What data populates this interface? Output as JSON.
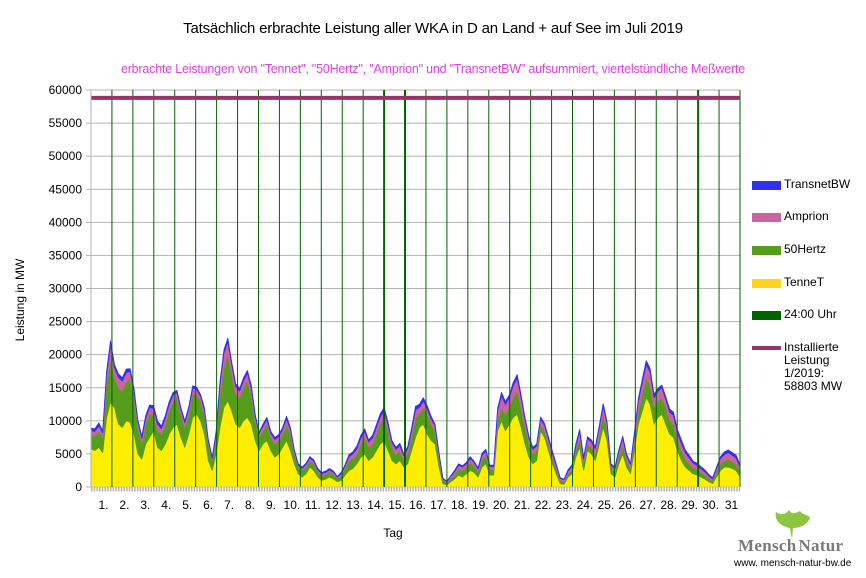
{
  "chart_data": {
    "type": "area",
    "stacked": true,
    "title": "Tatsächlich erbrachte Leistung aller WKA in D an Land + auf See im Juli 2019",
    "subtitle": "erbrachte Leistungen von \"Tennet\", \"50Hertz\", \"Amprion\" und \"TransnetBW\" aufsummiert, viertelstündliche Meßwerte",
    "xlabel": "Tag",
    "ylabel": "Leistung in MW",
    "ylim": [
      0,
      60000
    ],
    "yticks": [
      0,
      5000,
      10000,
      15000,
      20000,
      25000,
      30000,
      35000,
      40000,
      45000,
      50000,
      55000,
      60000
    ],
    "xticks": [
      "1.",
      "2.",
      "3.",
      "4.",
      "5.",
      "6.",
      "7.",
      "8.",
      "9.",
      "10.",
      "11.",
      "12.",
      "13.",
      "14.",
      "15.",
      "16.",
      "17.",
      "18.",
      "19.",
      "20.",
      "21.",
      "22.",
      "23.",
      "24.",
      "25.",
      "26.",
      "27.",
      "28.",
      "29.",
      "30.",
      "31"
    ],
    "x_unit": "day (6-hour steps, day 1 00:00 to day 31 24:00)",
    "grid": true,
    "legend_position": "right",
    "series": [
      {
        "name": "TenneT",
        "color": "#ffee00",
        "legend_color": "#ffd320",
        "values": [
          5800,
          5500,
          6000,
          5200,
          10500,
          12800,
          12000,
          9500,
          9000,
          10000,
          9800,
          8000,
          5000,
          4200,
          6500,
          7500,
          8500,
          6000,
          5500,
          6500,
          8000,
          9000,
          9500,
          7500,
          6000,
          8000,
          10500,
          11000,
          10000,
          8000,
          4000,
          2500,
          5000,
          9000,
          12000,
          13000,
          11500,
          9500,
          9000,
          10000,
          10500,
          9500,
          7000,
          5500,
          6500,
          7000,
          5500,
          4500,
          5000,
          6000,
          7000,
          5500,
          3500,
          2000,
          1500,
          2000,
          3000,
          2500,
          1500,
          1000,
          1200,
          1500,
          1200,
          800,
          1000,
          1800,
          2500,
          2800,
          3500,
          4500,
          5000,
          4000,
          4500,
          5500,
          6500,
          7000,
          5500,
          4000,
          3500,
          4000,
          3000,
          3500,
          5500,
          7500,
          9000,
          9500,
          8000,
          7000,
          6500,
          3000,
          500,
          300,
          800,
          1200,
          1800,
          1500,
          2000,
          2500,
          2200,
          1500,
          3000,
          3500,
          1800,
          1800,
          8500,
          10000,
          8500,
          9500,
          10500,
          11000,
          9000,
          6500,
          4500,
          3500,
          4000,
          8500,
          7500,
          5500,
          3500,
          2000,
          500,
          400,
          1500,
          2000,
          4500,
          6000,
          2500,
          5500,
          5000,
          4000,
          6500,
          9000,
          7000,
          2000,
          1500,
          3500,
          5000,
          3000,
          2000,
          5500,
          9500,
          11500,
          13500,
          12500,
          9500,
          10500,
          11000,
          9500,
          8000,
          7500,
          5500,
          4000,
          3000,
          2500,
          2000,
          1800,
          1500,
          1200,
          800,
          500,
          1500,
          2500,
          3000,
          3000,
          2800,
          2500,
          1500
        ]
      },
      {
        "name": "50Hertz",
        "color": "#579d1c",
        "legend_color": "#579d1c",
        "values": [
          2000,
          2200,
          2500,
          2300,
          5000,
          6500,
          4500,
          5500,
          5500,
          6000,
          6500,
          5500,
          4000,
          2500,
          3000,
          3500,
          2500,
          2500,
          2500,
          3000,
          3500,
          4000,
          4000,
          3500,
          3000,
          3000,
          3500,
          3000,
          3000,
          3000,
          2500,
          1500,
          2500,
          5000,
          6000,
          7000,
          5500,
          4500,
          4500,
          5000,
          5500,
          4500,
          3000,
          2000,
          2000,
          2500,
          2000,
          2000,
          2000,
          2000,
          2500,
          2500,
          1500,
          1000,
          1000,
          1000,
          1000,
          1000,
          800,
          700,
          700,
          800,
          700,
          500,
          700,
          1000,
          1500,
          1500,
          1500,
          2000,
          2500,
          2000,
          2000,
          2500,
          3000,
          3500,
          3000,
          2000,
          1500,
          1500,
          1000,
          1500,
          2000,
          3000,
          2000,
          2500,
          3000,
          2500,
          2000,
          1500,
          500,
          300,
          500,
          700,
          1000,
          1000,
          1000,
          1200,
          1000,
          800,
          1200,
          1200,
          800,
          800,
          1500,
          2000,
          2500,
          2500,
          3000,
          3500,
          3000,
          2500,
          2000,
          1500,
          1500,
          1000,
          1000,
          1000,
          1000,
          800,
          500,
          400,
          500,
          600,
          1000,
          1500,
          1000,
          1000,
          1000,
          1000,
          1500,
          2000,
          1500,
          800,
          800,
          1000,
          1500,
          1000,
          800,
          1500,
          2000,
          2500,
          3000,
          3000,
          2500,
          2500,
          2500,
          2500,
          2000,
          2000,
          1500,
          1500,
          1200,
          1000,
          800,
          800,
          700,
          600,
          500,
          400,
          800,
          1000,
          1000,
          1200,
          1000,
          1000,
          800
        ]
      },
      {
        "name": "Amprion",
        "color": "#c8659e",
        "legend_color": "#c8659e",
        "values": [
          700,
          700,
          800,
          700,
          1500,
          2200,
          1500,
          1600,
          1500,
          1300,
          1200,
          1000,
          800,
          700,
          900,
          1000,
          900,
          1000,
          800,
          900,
          1000,
          900,
          800,
          700,
          700,
          800,
          900,
          800,
          700,
          700,
          500,
          300,
          600,
          1500,
          2200,
          2000,
          1500,
          1200,
          1000,
          1100,
          1200,
          1000,
          700,
          600,
          700,
          700,
          600,
          700,
          600,
          700,
          800,
          700,
          500,
          300,
          300,
          400,
          400,
          400,
          300,
          300,
          300,
          300,
          300,
          200,
          300,
          400,
          600,
          700,
          800,
          900,
          900,
          800,
          900,
          1000,
          1100,
          1000,
          800,
          700,
          700,
          800,
          700,
          800,
          1000,
          1200,
          1000,
          1000,
          900,
          800,
          700,
          500,
          200,
          200,
          300,
          400,
          500,
          500,
          500,
          600,
          500,
          400,
          600,
          700,
          500,
          500,
          1500,
          1800,
          1500,
          1500,
          1800,
          2000,
          1500,
          1200,
          900,
          700,
          700,
          800,
          800,
          800,
          700,
          500,
          300,
          300,
          400,
          500,
          700,
          900,
          700,
          800,
          800,
          800,
          1000,
          1200,
          1000,
          500,
          500,
          800,
          900,
          700,
          600,
          900,
          1400,
          1800,
          2000,
          1900,
          1500,
          1500,
          1500,
          1300,
          1300,
          1300,
          1200,
          1100,
          1000,
          900,
          800,
          700,
          600,
          500,
          400,
          300,
          500,
          800,
          900,
          1000,
          1000,
          900,
          700
        ]
      },
      {
        "name": "TransnetBW",
        "color": "#3030ee",
        "legend_color": "#3030ee",
        "values": [
          400,
          400,
          400,
          300,
          500,
          600,
          500,
          500,
          500,
          500,
          400,
          400,
          300,
          300,
          400,
          400,
          400,
          500,
          400,
          400,
          400,
          400,
          300,
          300,
          300,
          300,
          400,
          300,
          300,
          300,
          200,
          200,
          300,
          500,
          500,
          500,
          400,
          400,
          400,
          400,
          400,
          400,
          300,
          200,
          300,
          300,
          300,
          300,
          300,
          300,
          400,
          300,
          200,
          200,
          200,
          200,
          200,
          200,
          200,
          200,
          200,
          200,
          200,
          100,
          200,
          200,
          300,
          300,
          400,
          400,
          400,
          300,
          400,
          400,
          500,
          500,
          400,
          300,
          300,
          300,
          300,
          300,
          400,
          500,
          500,
          500,
          400,
          400,
          300,
          200,
          100,
          100,
          100,
          200,
          200,
          200,
          200,
          300,
          200,
          200,
          300,
          300,
          200,
          200,
          400,
          500,
          400,
          400,
          500,
          500,
          400,
          300,
          300,
          300,
          300,
          300,
          300,
          300,
          300,
          200,
          100,
          100,
          200,
          200,
          300,
          300,
          300,
          300,
          300,
          300,
          300,
          400,
          300,
          200,
          200,
          300,
          300,
          300,
          200,
          300,
          400,
          500,
          600,
          500,
          500,
          400,
          400,
          400,
          500,
          500,
          500,
          500,
          400,
          400,
          300,
          300,
          300,
          300,
          200,
          200,
          200,
          300,
          400,
          400,
          400,
          400,
          400,
          300
        ]
      }
    ],
    "reference_lines": [
      {
        "name": "24:00 Uhr",
        "type": "vertical",
        "color": "#006400",
        "at": "each midnight (day boundaries)"
      },
      {
        "name": "Installierte Leistung 1/2019: 58803 MW",
        "type": "horizontal",
        "color": "#993366",
        "value": 58803
      }
    ]
  },
  "legend": [
    {
      "label": "TransnetBW",
      "color": "#3030ee",
      "type": "area"
    },
    {
      "label": "Amprion",
      "color": "#c8659e",
      "type": "area"
    },
    {
      "label": "50Hertz",
      "color": "#579d1c",
      "type": "area"
    },
    {
      "label": "TenneT",
      "color": "#ffd320",
      "type": "area"
    },
    {
      "label": "24:00 Uhr",
      "color": "#006400",
      "type": "line"
    },
    {
      "label": "Installierte Leistung 1/2019: 58803 MW",
      "lines": [
        "Installierte",
        "Leistung",
        "1/2019:",
        "58803 MW"
      ],
      "color": "#993366",
      "type": "line"
    }
  ],
  "logo": {
    "name": "MenschNatur",
    "text_part1": "Mensch",
    "text_part2": "Natur",
    "url_text": "www. mensch-natur-bw.de",
    "leaf_color": "#8cc63f"
  }
}
